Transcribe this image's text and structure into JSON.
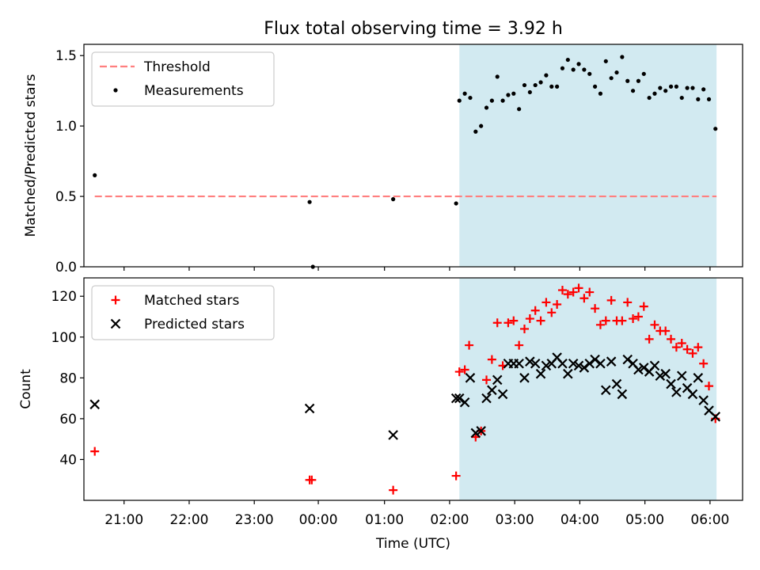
{
  "title": "Flux total observing time = 3.92 h",
  "x_axis_label": "Time (UTC)",
  "x_ticks": [
    "21:00",
    "22:00",
    "23:00",
    "23:59",
    "01:00",
    "02:00",
    "03:00",
    "04:00",
    "05:00",
    "06:00"
  ],
  "x_tick_labels": [
    "21:00",
    "22:00",
    "23:00",
    "00:00",
    "01:00",
    "02:00",
    "03:00",
    "04:00",
    "05:00",
    "06:00"
  ],
  "x_range": [
    "20:23",
    "06:30"
  ],
  "highlight_span": {
    "start": "02:09",
    "end": "06:06",
    "color": "#add8e6"
  },
  "colors": {
    "threshold": "#ff7f7f",
    "measurements": "#000000",
    "matched": "#ff0000",
    "predicted": "#000000",
    "span": "#add8e6"
  },
  "chart_data": [
    {
      "type": "scatter",
      "ylabel": "Matched/Predicted stars",
      "ylim": [
        0,
        1.58
      ],
      "y_ticks": [
        0.0,
        0.5,
        1.0,
        1.5
      ],
      "y_tick_labels": [
        "0.0",
        "0.5",
        "1.0",
        "1.5"
      ],
      "legend_position": "top-left",
      "threshold": {
        "name": "Threshold",
        "value": 0.5,
        "x_start": "20:33",
        "x_end": "06:06"
      },
      "series": [
        {
          "name": "Measurements",
          "marker": "dot",
          "points": [
            [
              "20:33",
              0.65
            ],
            [
              "23:51",
              0.46
            ],
            [
              "23:54",
              0.0
            ],
            [
              "01:08",
              0.48
            ],
            [
              "02:06",
              0.45
            ],
            [
              "02:09",
              1.18
            ],
            [
              "02:14",
              1.23
            ],
            [
              "02:19",
              1.2
            ],
            [
              "02:24",
              0.96
            ],
            [
              "02:29",
              1.0
            ],
            [
              "02:34",
              1.13
            ],
            [
              "02:39",
              1.18
            ],
            [
              "02:44",
              1.35
            ],
            [
              "02:49",
              1.18
            ],
            [
              "02:54",
              1.22
            ],
            [
              "02:59",
              1.23
            ],
            [
              "03:04",
              1.12
            ],
            [
              "03:09",
              1.29
            ],
            [
              "03:14",
              1.24
            ],
            [
              "03:19",
              1.29
            ],
            [
              "03:24",
              1.31
            ],
            [
              "03:29",
              1.36
            ],
            [
              "03:34",
              1.28
            ],
            [
              "03:39",
              1.28
            ],
            [
              "03:44",
              1.41
            ],
            [
              "03:49",
              1.47
            ],
            [
              "03:54",
              1.4
            ],
            [
              "03:59",
              1.44
            ],
            [
              "04:04",
              1.4
            ],
            [
              "04:09",
              1.37
            ],
            [
              "04:14",
              1.28
            ],
            [
              "04:19",
              1.23
            ],
            [
              "04:24",
              1.46
            ],
            [
              "04:29",
              1.34
            ],
            [
              "04:34",
              1.38
            ],
            [
              "04:39",
              1.49
            ],
            [
              "04:44",
              1.32
            ],
            [
              "04:49",
              1.25
            ],
            [
              "04:54",
              1.32
            ],
            [
              "04:59",
              1.37
            ],
            [
              "05:04",
              1.2
            ],
            [
              "05:09",
              1.23
            ],
            [
              "05:14",
              1.27
            ],
            [
              "05:19",
              1.25
            ],
            [
              "05:24",
              1.28
            ],
            [
              "05:29",
              1.28
            ],
            [
              "05:34",
              1.2
            ],
            [
              "05:39",
              1.27
            ],
            [
              "05:44",
              1.27
            ],
            [
              "05:49",
              1.19
            ],
            [
              "05:54",
              1.26
            ],
            [
              "05:59",
              1.19
            ],
            [
              "06:05",
              0.98
            ]
          ]
        }
      ]
    },
    {
      "type": "scatter",
      "ylabel": "Count",
      "ylim": [
        20,
        129
      ],
      "y_ticks": [
        40,
        60,
        80,
        100,
        120
      ],
      "y_tick_labels": [
        "40",
        "60",
        "80",
        "100",
        "120"
      ],
      "legend_position": "top-left",
      "series": [
        {
          "name": "Matched stars",
          "marker": "plus",
          "points": [
            [
              "20:33",
              44
            ],
            [
              "23:51",
              30
            ],
            [
              "23:53",
              30
            ],
            [
              "01:08",
              25
            ],
            [
              "02:06",
              32
            ],
            [
              "02:09",
              83
            ],
            [
              "02:14",
              84
            ],
            [
              "02:18",
              96
            ],
            [
              "02:24",
              51
            ],
            [
              "02:29",
              54
            ],
            [
              "02:34",
              79
            ],
            [
              "02:39",
              89
            ],
            [
              "02:44",
              107
            ],
            [
              "02:49",
              86
            ],
            [
              "02:54",
              107
            ],
            [
              "02:59",
              108
            ],
            [
              "03:04",
              96
            ],
            [
              "03:09",
              104
            ],
            [
              "03:14",
              109
            ],
            [
              "03:19",
              113
            ],
            [
              "03:24",
              108
            ],
            [
              "03:29",
              117
            ],
            [
              "03:34",
              112
            ],
            [
              "03:39",
              116
            ],
            [
              "03:44",
              123
            ],
            [
              "03:49",
              121
            ],
            [
              "03:54",
              122
            ],
            [
              "03:59",
              124
            ],
            [
              "04:04",
              119
            ],
            [
              "04:09",
              122
            ],
            [
              "04:14",
              114
            ],
            [
              "04:19",
              106
            ],
            [
              "04:24",
              108
            ],
            [
              "04:29",
              118
            ],
            [
              "04:34",
              108
            ],
            [
              "04:39",
              108
            ],
            [
              "04:44",
              117
            ],
            [
              "04:49",
              109
            ],
            [
              "04:54",
              110
            ],
            [
              "04:59",
              115
            ],
            [
              "05:04",
              99
            ],
            [
              "05:09",
              106
            ],
            [
              "05:14",
              103
            ],
            [
              "05:19",
              103
            ],
            [
              "05:24",
              99
            ],
            [
              "05:29",
              95
            ],
            [
              "05:34",
              97
            ],
            [
              "05:39",
              94
            ],
            [
              "05:44",
              92
            ],
            [
              "05:49",
              95
            ],
            [
              "05:54",
              87
            ],
            [
              "05:59",
              76
            ],
            [
              "06:05",
              60
            ]
          ]
        },
        {
          "name": "Predicted stars",
          "marker": "x",
          "points": [
            [
              "20:33",
              67
            ],
            [
              "23:51",
              65
            ],
            [
              "01:08",
              52
            ],
            [
              "02:06",
              70
            ],
            [
              "02:09",
              70
            ],
            [
              "02:14",
              68
            ],
            [
              "02:19",
              80
            ],
            [
              "02:24",
              53
            ],
            [
              "02:29",
              54
            ],
            [
              "02:34",
              70
            ],
            [
              "02:39",
              74
            ],
            [
              "02:44",
              79
            ],
            [
              "02:49",
              72
            ],
            [
              "02:54",
              87
            ],
            [
              "02:59",
              87
            ],
            [
              "03:04",
              87
            ],
            [
              "03:09",
              80
            ],
            [
              "03:14",
              88
            ],
            [
              "03:19",
              87
            ],
            [
              "03:24",
              82
            ],
            [
              "03:29",
              86
            ],
            [
              "03:34",
              87
            ],
            [
              "03:39",
              90
            ],
            [
              "03:44",
              87
            ],
            [
              "03:49",
              82
            ],
            [
              "03:54",
              87
            ],
            [
              "03:59",
              86
            ],
            [
              "04:04",
              85
            ],
            [
              "04:09",
              87
            ],
            [
              "04:14",
              89
            ],
            [
              "04:19",
              87
            ],
            [
              "04:24",
              74
            ],
            [
              "04:29",
              88
            ],
            [
              "04:34",
              77
            ],
            [
              "04:39",
              72
            ],
            [
              "04:44",
              89
            ],
            [
              "04:49",
              87
            ],
            [
              "04:54",
              84
            ],
            [
              "04:59",
              85
            ],
            [
              "05:04",
              83
            ],
            [
              "05:09",
              86
            ],
            [
              "05:14",
              81
            ],
            [
              "05:19",
              82
            ],
            [
              "05:24",
              77
            ],
            [
              "05:29",
              73
            ],
            [
              "05:34",
              81
            ],
            [
              "05:39",
              75
            ],
            [
              "05:44",
              72
            ],
            [
              "05:49",
              80
            ],
            [
              "05:54",
              69
            ],
            [
              "05:59",
              64
            ],
            [
              "06:05",
              61
            ]
          ]
        }
      ]
    }
  ]
}
